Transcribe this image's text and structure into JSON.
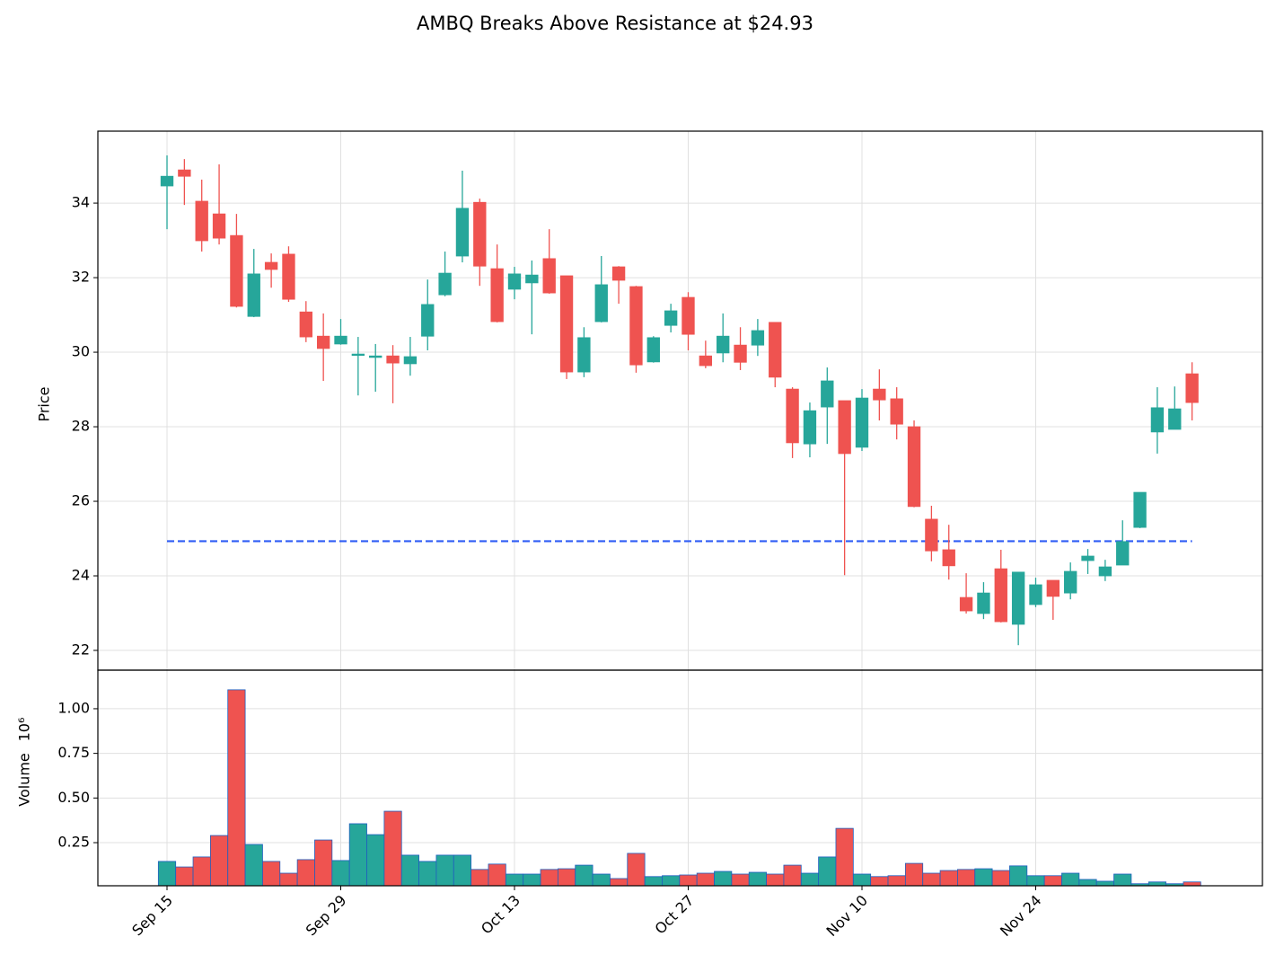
{
  "chart_data": {
    "type": "candlestick",
    "title": "AMBQ Breaks Above Resistance at $24.93",
    "ylabel": "Price",
    "volume_label": "Volume",
    "volume_multiplier": "10⁶",
    "x": [
      0,
      1,
      2,
      3,
      4,
      5,
      6,
      7,
      8,
      9,
      10,
      11,
      12,
      13,
      14,
      15,
      16,
      17,
      18,
      19,
      20,
      21,
      22,
      23,
      24,
      25,
      26,
      27,
      28,
      29,
      30,
      31,
      32,
      33,
      34,
      35,
      36,
      37,
      38,
      39,
      40,
      41,
      42,
      43,
      44,
      45,
      46,
      47,
      48,
      49,
      50,
      51,
      52,
      53,
      54,
      55,
      56,
      57,
      58,
      59
    ],
    "open": [
      34.46,
      34.89,
      34.05,
      33.71,
      33.13,
      30.96,
      32.41,
      32.63,
      31.08,
      30.43,
      30.22,
      29.92,
      29.86,
      29.9,
      29.69,
      30.43,
      31.54,
      32.58,
      34.02,
      32.24,
      31.69,
      31.86,
      32.51,
      32.05,
      29.47,
      30.82,
      32.29,
      31.76,
      29.74,
      30.72,
      31.47,
      29.9,
      29.98,
      30.19,
      30.19,
      30.8,
      29.01,
      27.54,
      28.53,
      28.7,
      27.45,
      29.01,
      28.75,
      28.0,
      25.52,
      24.7,
      23.42,
      22.99,
      24.19,
      22.7,
      23.23,
      23.88,
      23.54,
      24.41,
      24.0,
      24.29,
      25.3,
      27.86,
      27.93,
      29.42
    ],
    "high": [
      35.28,
      35.18,
      34.63,
      35.04,
      33.71,
      32.77,
      32.65,
      32.84,
      31.37,
      31.04,
      30.89,
      30.41,
      30.22,
      30.19,
      30.41,
      31.95,
      32.7,
      34.87,
      34.12,
      32.89,
      32.29,
      32.46,
      33.3,
      32.05,
      30.67,
      32.58,
      32.31,
      31.78,
      30.43,
      31.3,
      31.61,
      30.31,
      31.04,
      30.67,
      30.89,
      30.8,
      29.06,
      28.65,
      29.59,
      28.7,
      29.01,
      29.54,
      29.06,
      28.17,
      25.88,
      25.37,
      24.07,
      23.83,
      24.7,
      24.1,
      23.95,
      23.88,
      24.36,
      24.72,
      24.43,
      25.49,
      26.24,
      29.06,
      29.08,
      29.73
    ],
    "low": [
      33.3,
      33.95,
      32.7,
      32.89,
      31.2,
      30.94,
      31.73,
      31.35,
      30.27,
      29.23,
      30.2,
      28.84,
      28.94,
      28.63,
      29.37,
      30.05,
      31.5,
      32.41,
      31.78,
      30.8,
      31.42,
      30.48,
      31.57,
      29.28,
      29.33,
      30.8,
      31.3,
      29.45,
      29.72,
      30.53,
      30.05,
      29.57,
      29.73,
      29.52,
      29.9,
      29.06,
      27.16,
      27.18,
      27.54,
      24.02,
      27.35,
      28.17,
      27.66,
      25.84,
      24.39,
      23.9,
      22.99,
      22.84,
      22.75,
      22.14,
      23.16,
      22.82,
      23.37,
      24.05,
      23.86,
      24.29,
      25.28,
      27.28,
      27.93,
      28.17
    ],
    "close": [
      34.72,
      34.72,
      32.99,
      33.06,
      31.23,
      32.1,
      32.22,
      31.42,
      30.41,
      30.1,
      30.43,
      29.95,
      29.9,
      29.71,
      29.88,
      31.28,
      32.12,
      33.86,
      32.31,
      30.82,
      32.1,
      32.07,
      31.59,
      29.47,
      30.39,
      31.81,
      31.93,
      29.66,
      30.39,
      31.11,
      30.48,
      29.64,
      30.43,
      29.73,
      30.58,
      29.33,
      27.57,
      28.43,
      29.23,
      27.28,
      28.77,
      28.72,
      28.07,
      25.86,
      24.67,
      24.27,
      23.06,
      23.54,
      22.77,
      24.1,
      23.76,
      23.45,
      24.12,
      24.53,
      24.24,
      24.92,
      26.24,
      28.51,
      28.48,
      28.65
    ],
    "volume": [
      0.145,
      0.114,
      0.17,
      0.29,
      1.106,
      0.24,
      0.145,
      0.079,
      0.155,
      0.265,
      0.15,
      0.356,
      0.295,
      0.426,
      0.18,
      0.145,
      0.18,
      0.18,
      0.1,
      0.13,
      0.074,
      0.074,
      0.1,
      0.104,
      0.124,
      0.074,
      0.049,
      0.19,
      0.06,
      0.065,
      0.069,
      0.079,
      0.089,
      0.074,
      0.084,
      0.074,
      0.124,
      0.079,
      0.17,
      0.33,
      0.074,
      0.06,
      0.065,
      0.134,
      0.079,
      0.094,
      0.1,
      0.104,
      0.094,
      0.12,
      0.065,
      0.065,
      0.079,
      0.044,
      0.034,
      0.074,
      0.02,
      0.03,
      0.02,
      0.03
    ],
    "resistance": 24.93,
    "resistance_color": "#2f5cf5",
    "up_color": "#26a69a",
    "down_color": "#ef5350",
    "volume_edge_color": "#1f5fbf",
    "xlim": [
      -3.98,
      63.05
    ],
    "xticks": [
      {
        "value": 0,
        "label": "Sep 15"
      },
      {
        "value": 10,
        "label": "Sep 29"
      },
      {
        "value": 20,
        "label": "Oct 13"
      },
      {
        "value": 30,
        "label": "Oct 27"
      },
      {
        "value": 40,
        "label": "Nov 10"
      },
      {
        "value": 50,
        "label": "Nov 24"
      }
    ],
    "ylim": [
      21.47,
      35.93
    ],
    "yticks": [
      22,
      24,
      26,
      28,
      30,
      32,
      34
    ],
    "volume_ylim": [
      0.0086,
      1.216
    ],
    "volume_yticks": [
      {
        "value": 0.25,
        "label": "0.25"
      },
      {
        "value": 0.5,
        "label": "0.50"
      },
      {
        "value": 0.75,
        "label": "0.75"
      },
      {
        "value": 1,
        "label": "1.00"
      }
    ],
    "grid": true
  }
}
